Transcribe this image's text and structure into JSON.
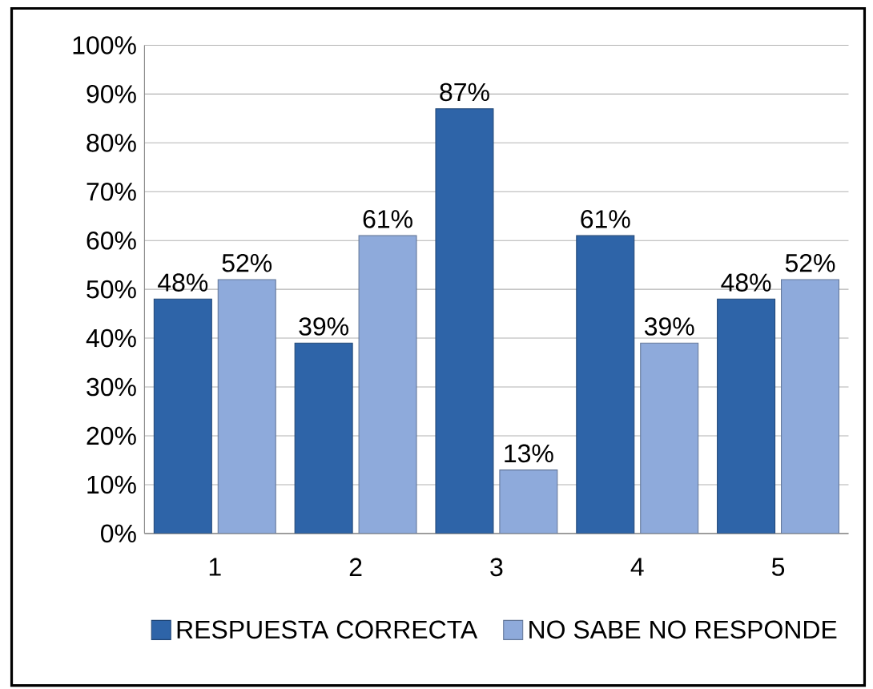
{
  "chart_data": {
    "type": "bar",
    "categories": [
      "1",
      "2",
      "3",
      "4",
      "5"
    ],
    "series": [
      {
        "name": "RESPUESTA CORRECTA",
        "color": "#2e64a8",
        "values": [
          48,
          39,
          87,
          61,
          48
        ],
        "value_labels": [
          "48%",
          "39%",
          "87%",
          "61%",
          "48%"
        ]
      },
      {
        "name": "NO SABE NO RESPONDE",
        "color": "#8eaadb",
        "values": [
          52,
          61,
          13,
          39,
          52
        ],
        "value_labels": [
          "52%",
          "61%",
          "13%",
          "39%",
          "52%"
        ]
      }
    ],
    "ylim": [
      0,
      100
    ],
    "yticks": [
      {
        "value": 0,
        "label": "0%"
      },
      {
        "value": 10,
        "label": "10%"
      },
      {
        "value": 20,
        "label": "20%"
      },
      {
        "value": 30,
        "label": "30%"
      },
      {
        "value": 40,
        "label": "40%"
      },
      {
        "value": 50,
        "label": "50%"
      },
      {
        "value": 60,
        "label": "60%"
      },
      {
        "value": 70,
        "label": "70%"
      },
      {
        "value": 80,
        "label": "80%"
      },
      {
        "value": 90,
        "label": "90%"
      },
      {
        "value": 100,
        "label": "100%"
      }
    ],
    "grid": "y",
    "legend": "bottom"
  }
}
